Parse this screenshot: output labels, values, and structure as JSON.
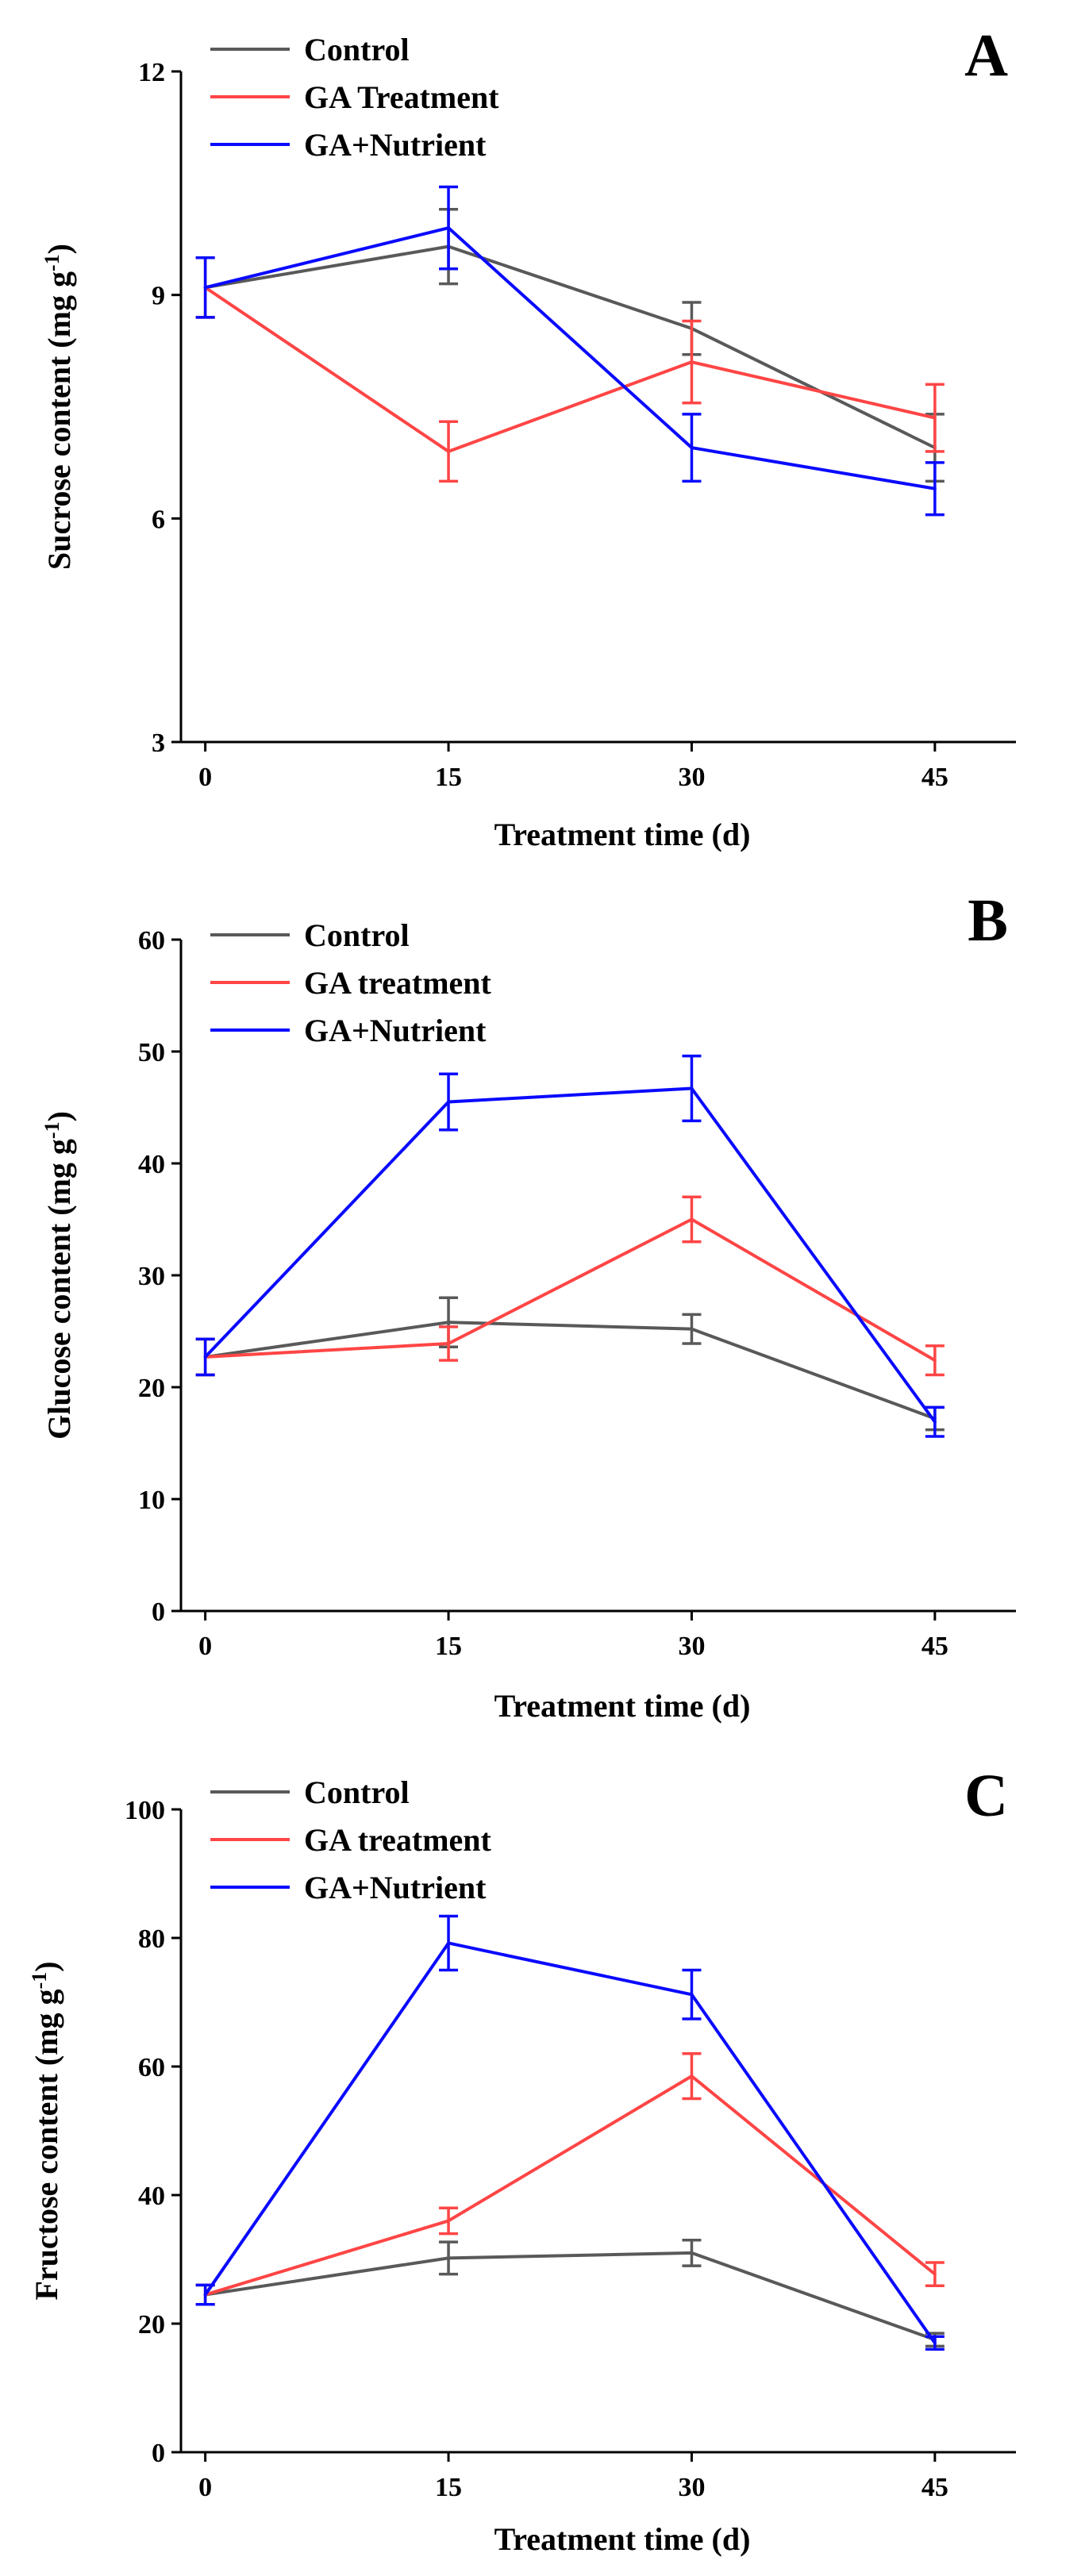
{
  "colors": {
    "control": "#595959",
    "ga_treatment": "#ff4545",
    "ga_nutrient": "#0a0aff",
    "axis": "#000000"
  },
  "chart_data": [
    {
      "type": "line",
      "panel_label": "A",
      "title": "",
      "xlabel": "Treatment time (d)",
      "ylabel": "Sucrose content (mg g",
      "ylabel_sup": "-1",
      "ylabel_close": ")",
      "x": [
        0,
        15,
        30,
        45
      ],
      "x_ticks": [
        0,
        15,
        30,
        45
      ],
      "xlim": [
        -1.5,
        50
      ],
      "ylim": [
        3,
        12
      ],
      "y_ticks": [
        3,
        6,
        9,
        12
      ],
      "legend_position": "top-left",
      "series": [
        {
          "name": "Control",
          "color_key": "control",
          "values": [
            9.1,
            9.65,
            8.55,
            6.95
          ],
          "errors": [
            0.4,
            0.5,
            0.35,
            0.45
          ]
        },
        {
          "name": "GA Treatment",
          "color_key": "ga_treatment",
          "values": [
            9.1,
            6.9,
            8.1,
            7.35
          ],
          "errors": [
            0.4,
            0.4,
            0.55,
            0.45
          ]
        },
        {
          "name": "GA+Nutrient",
          "color_key": "ga_nutrient",
          "values": [
            9.1,
            9.9,
            6.95,
            6.4
          ],
          "errors": [
            0.4,
            0.55,
            0.45,
            0.35
          ]
        }
      ]
    },
    {
      "type": "line",
      "panel_label": "B",
      "title": "",
      "xlabel": "Treatment time (d)",
      "ylabel": "Glucose content (mg g",
      "ylabel_sup": "-1",
      "ylabel_close": ")",
      "x": [
        0,
        15,
        30,
        45
      ],
      "x_ticks": [
        0,
        15,
        30,
        45
      ],
      "xlim": [
        -1.5,
        50
      ],
      "ylim": [
        0,
        60
      ],
      "y_ticks": [
        0,
        10,
        20,
        30,
        40,
        50,
        60
      ],
      "legend_position": "top-left",
      "series": [
        {
          "name": "Control",
          "color_key": "control",
          "values": [
            22.7,
            25.8,
            25.2,
            17.2
          ],
          "errors": [
            1.6,
            2.2,
            1.3,
            1.0
          ]
        },
        {
          "name": "GA treatment",
          "color_key": "ga_treatment",
          "values": [
            22.7,
            23.9,
            35.0,
            22.4
          ],
          "errors": [
            1.6,
            1.5,
            2.0,
            1.3
          ]
        },
        {
          "name": "GA+Nutrient",
          "color_key": "ga_nutrient",
          "values": [
            22.7,
            45.5,
            46.7,
            16.9
          ],
          "errors": [
            1.6,
            2.5,
            2.9,
            1.3
          ]
        }
      ]
    },
    {
      "type": "line",
      "panel_label": "C",
      "title": "",
      "xlabel": "Treatment time (d)",
      "ylabel": "Fructose content (mg g",
      "ylabel_sup": "-1",
      "ylabel_close": ")",
      "x": [
        0,
        15,
        30,
        45
      ],
      "x_ticks": [
        0,
        15,
        30,
        45
      ],
      "xlim": [
        -1.5,
        50
      ],
      "ylim": [
        0,
        100
      ],
      "y_ticks": [
        0,
        20,
        40,
        60,
        80,
        100
      ],
      "legend_position": "top-left",
      "series": [
        {
          "name": "Control",
          "color_key": "control",
          "values": [
            24.5,
            30.2,
            31.0,
            17.5
          ],
          "errors": [
            1.5,
            2.5,
            2.0,
            1.0
          ]
        },
        {
          "name": "GA treatment",
          "color_key": "ga_treatment",
          "values": [
            24.5,
            36.0,
            58.5,
            27.7
          ],
          "errors": [
            1.5,
            2.0,
            3.5,
            1.8
          ]
        },
        {
          "name": "GA+Nutrient",
          "color_key": "ga_nutrient",
          "values": [
            24.5,
            79.2,
            71.2,
            17.0
          ],
          "errors": [
            1.5,
            4.2,
            3.8,
            1.0
          ]
        }
      ]
    }
  ]
}
